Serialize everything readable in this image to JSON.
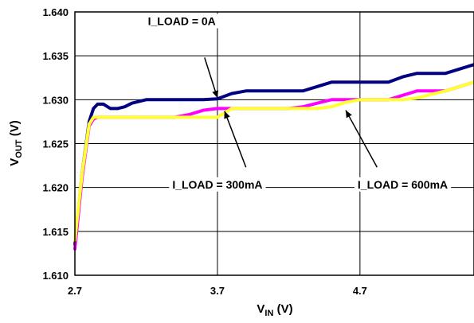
{
  "chart_data": {
    "type": "line",
    "title": "",
    "xlabel": {
      "main": "V",
      "sub": "IN",
      "unit": " (V)"
    },
    "ylabel": {
      "main": "V",
      "sub": "OUT",
      "unit": " (V)"
    },
    "xlim": [
      2.7,
      5.5
    ],
    "ylim": [
      1.61,
      1.64
    ],
    "x_ticks": [
      2.7,
      3.7,
      4.7
    ],
    "x_tick_labels": [
      "2.7",
      "3.7",
      "4.7"
    ],
    "y_ticks": [
      1.61,
      1.615,
      1.62,
      1.625,
      1.63,
      1.635,
      1.64
    ],
    "y_tick_labels": [
      "1.610",
      "1.615",
      "1.620",
      "1.625",
      "1.630",
      "1.635",
      "1.640"
    ],
    "grid": true,
    "series": [
      {
        "name": "I_LOAD = 0A",
        "color": "#000080",
        "x": [
          2.7,
          2.75,
          2.8,
          2.83,
          2.86,
          2.9,
          2.95,
          3.0,
          3.05,
          3.1,
          3.2,
          3.3,
          3.4,
          3.5,
          3.6,
          3.7,
          3.8,
          3.9,
          4.0,
          4.1,
          4.2,
          4.3,
          4.4,
          4.5,
          4.6,
          4.7,
          4.8,
          4.9,
          5.0,
          5.1,
          5.2,
          5.3,
          5.4,
          5.5
        ],
        "y": [
          1.6135,
          1.6215,
          1.6275,
          1.629,
          1.6295,
          1.6295,
          1.629,
          1.629,
          1.6292,
          1.6296,
          1.63,
          1.63,
          1.63,
          1.63,
          1.63,
          1.6301,
          1.6307,
          1.631,
          1.631,
          1.631,
          1.631,
          1.631,
          1.6315,
          1.632,
          1.632,
          1.632,
          1.632,
          1.632,
          1.6326,
          1.633,
          1.633,
          1.633,
          1.6335,
          1.634
        ]
      },
      {
        "name": "I_LOAD = 300mA",
        "color": "#ff00ff",
        "x": [
          2.7,
          2.75,
          2.8,
          2.83,
          2.86,
          2.9,
          2.95,
          3.0,
          3.1,
          3.2,
          3.3,
          3.4,
          3.5,
          3.6,
          3.7,
          3.8,
          3.9,
          4.0,
          4.1,
          4.2,
          4.3,
          4.4,
          4.5,
          4.6,
          4.7,
          4.8,
          4.9,
          5.0,
          5.1,
          5.2,
          5.3,
          5.4,
          5.5
        ],
        "y": [
          1.613,
          1.621,
          1.627,
          1.6278,
          1.628,
          1.628,
          1.628,
          1.628,
          1.628,
          1.628,
          1.628,
          1.628,
          1.6283,
          1.6288,
          1.629,
          1.629,
          1.629,
          1.629,
          1.629,
          1.629,
          1.6292,
          1.6296,
          1.63,
          1.63,
          1.63,
          1.63,
          1.63,
          1.6305,
          1.631,
          1.631,
          1.631,
          1.6315,
          1.632
        ]
      },
      {
        "name": "I_LOAD = 600mA",
        "color": "#ffff33",
        "x": [
          2.7,
          2.75,
          2.8,
          2.83,
          2.86,
          2.9,
          2.95,
          3.0,
          3.1,
          3.2,
          3.3,
          3.4,
          3.5,
          3.6,
          3.7,
          3.75,
          3.8,
          3.9,
          4.0,
          4.1,
          4.2,
          4.3,
          4.4,
          4.5,
          4.6,
          4.7,
          4.8,
          4.9,
          5.0,
          5.1,
          5.2,
          5.3,
          5.4,
          5.5
        ],
        "y": [
          1.614,
          1.6215,
          1.6272,
          1.628,
          1.628,
          1.628,
          1.628,
          1.628,
          1.628,
          1.628,
          1.628,
          1.628,
          1.628,
          1.628,
          1.628,
          1.6285,
          1.629,
          1.629,
          1.629,
          1.629,
          1.629,
          1.629,
          1.629,
          1.6292,
          1.6297,
          1.63,
          1.63,
          1.63,
          1.63,
          1.6302,
          1.6306,
          1.631,
          1.6315,
          1.632
        ]
      }
    ],
    "annotations": [
      {
        "text": "I_LOAD = 0A",
        "series": 0,
        "label_x": 3.45,
        "label_y": 1.6385,
        "arrow_from": [
          3.61,
          1.6348
        ],
        "arrow_to": [
          3.7,
          1.6302
        ]
      },
      {
        "text": "I_LOAD = 300mA",
        "series": 1,
        "label_x": 3.7,
        "label_y": 1.6199,
        "arrow_from": [
          3.9,
          1.6223
        ],
        "arrow_to": [
          3.75,
          1.6287
        ]
      },
      {
        "text": "I_LOAD = 600mA",
        "series": 2,
        "label_x": 5.0,
        "label_y": 1.6199,
        "arrow_from": [
          4.82,
          1.6223
        ],
        "arrow_to": [
          4.6,
          1.6288
        ]
      }
    ]
  }
}
